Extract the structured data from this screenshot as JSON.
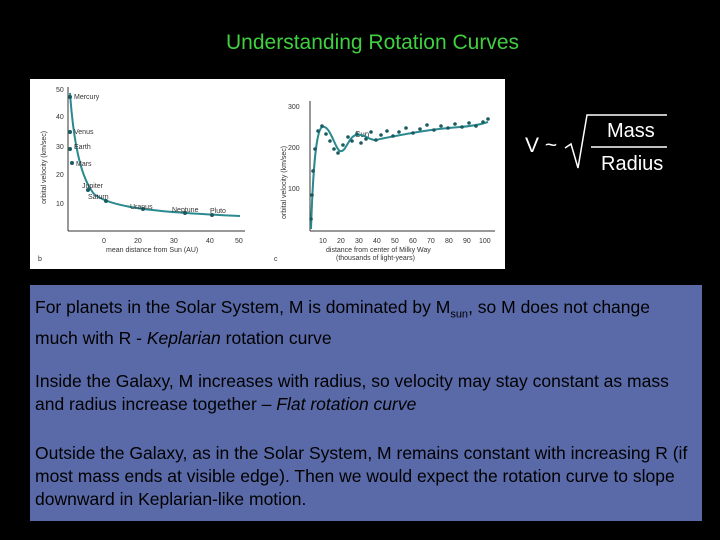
{
  "title": "Understanding Rotation Curves",
  "figure": {
    "solar": {
      "y_ticks": [
        "50",
        "40",
        "30",
        "20",
        "10"
      ],
      "x_ticks": [
        "0",
        "20",
        "30",
        "40",
        "50"
      ],
      "ylabel": "orbital velocity (km/sec)",
      "xlabel": "mean distance from Sun (AU)",
      "panel_label": "b",
      "planets": [
        "Mercury",
        "Venus",
        "Earth",
        "Mars",
        "Jupiter",
        "Saturn",
        "Uranus",
        "Neptune",
        "Pluto"
      ]
    },
    "galaxy": {
      "y_ticks": [
        "300",
        "200",
        "100"
      ],
      "x_ticks": [
        "10",
        "20",
        "30",
        "40",
        "50",
        "60",
        "70",
        "80",
        "90",
        "100"
      ],
      "ylabel": "orbital velocity (km/sec)",
      "xlabel1": "distance from center of Milky Way",
      "xlabel2": "(thousands of light-years)",
      "sun_label": "Sun",
      "panel_label": "c"
    }
  },
  "formula": {
    "v": "V ~",
    "numerator": "Mass",
    "denominator": "Radius"
  },
  "body": {
    "p1_a": "For planets in the Solar System, M is dominated by M",
    "p1_sub": "sun",
    "p1_b": ", so M does not change much with R - ",
    "p1_em": "Keplarian",
    "p1_c": " rotation curve",
    "p2_a": "Inside the Galaxy,  M  increases with radius,  so velocity may stay constant as mass and radius increase together – ",
    "p2_em": "Flat rotation curve",
    "p3": "Outside the Galaxy, as in the Solar System,  M remains constant with increasing R (if most mass ends at visible edge).  Then we would expect the rotation curve to slope downward in Keplarian-like motion."
  },
  "colors": {
    "title": "#3fd03f",
    "textbox": "#5a6aa8",
    "curve": "#2a8a8f"
  }
}
